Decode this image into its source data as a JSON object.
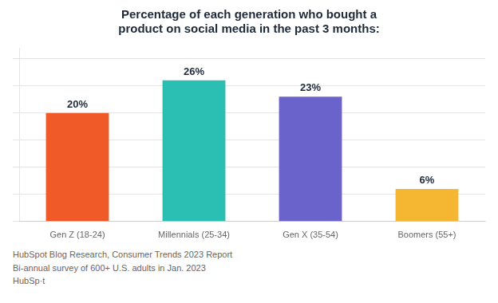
{
  "chart_data": {
    "type": "bar",
    "title": "Percentage of each generation who bought a\nproduct on social media in the past 3 months:",
    "categories": [
      "Gen Z (18-24)",
      "Millennials (25-34)",
      "Gen X (35-54)",
      "Boomers (55+)"
    ],
    "values": [
      20,
      26,
      23,
      6
    ],
    "value_labels": [
      "20%",
      "26%",
      "23%",
      "6%"
    ],
    "data_labels": true,
    "colors": [
      "#F05A28",
      "#2BBFB3",
      "#6B63CC",
      "#F5B731"
    ],
    "ylim": [
      0,
      32
    ],
    "yticks": [
      0,
      5,
      10,
      15,
      20,
      25,
      30
    ],
    "grid": true,
    "tick_labels": "x",
    "annotations": [
      "HubSpot Blog Research, Consumer Trends 2023 Report",
      "Bi-annual survey of 600+ U.S. adults in Jan. 2023",
      "HubSp·t"
    ]
  }
}
